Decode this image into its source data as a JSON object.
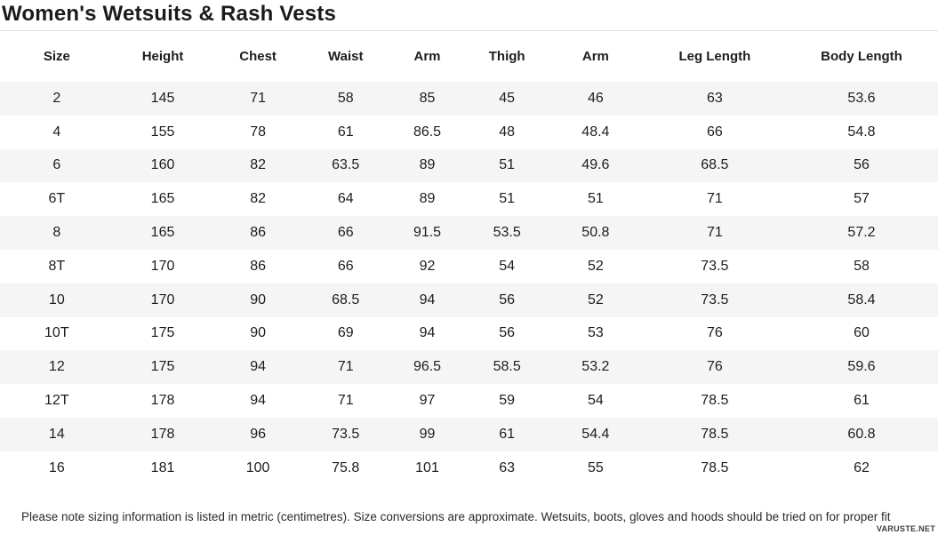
{
  "title": "Women's Wetsuits & Rash Vests",
  "table": {
    "columns": [
      "Size",
      "Height",
      "Chest",
      "Waist",
      "Arm",
      "Thigh",
      "Arm",
      "Leg Length",
      "Body Length"
    ],
    "rows": [
      [
        "2",
        "145",
        "71",
        "58",
        "85",
        "45",
        "46",
        "63",
        "53.6"
      ],
      [
        "4",
        "155",
        "78",
        "61",
        "86.5",
        "48",
        "48.4",
        "66",
        "54.8"
      ],
      [
        "6",
        "160",
        "82",
        "63.5",
        "89",
        "51",
        "49.6",
        "68.5",
        "56"
      ],
      [
        "6T",
        "165",
        "82",
        "64",
        "89",
        "51",
        "51",
        "71",
        "57"
      ],
      [
        "8",
        "165",
        "86",
        "66",
        "91.5",
        "53.5",
        "50.8",
        "71",
        "57.2"
      ],
      [
        "8T",
        "170",
        "86",
        "66",
        "92",
        "54",
        "52",
        "73.5",
        "58"
      ],
      [
        "10",
        "170",
        "90",
        "68.5",
        "94",
        "56",
        "52",
        "73.5",
        "58.4"
      ],
      [
        "10T",
        "175",
        "90",
        "69",
        "94",
        "56",
        "53",
        "76",
        "60"
      ],
      [
        "12",
        "175",
        "94",
        "71",
        "96.5",
        "58.5",
        "53.2",
        "76",
        "59.6"
      ],
      [
        "12T",
        "178",
        "94",
        "71",
        "97",
        "59",
        "54",
        "78.5",
        "61"
      ],
      [
        "14",
        "178",
        "96",
        "73.5",
        "99",
        "61",
        "54.4",
        "78.5",
        "60.8"
      ],
      [
        "16",
        "181",
        "100",
        "75.8",
        "101",
        "63",
        "55",
        "78.5",
        "62"
      ]
    ]
  },
  "footnote": "Please note sizing information is listed in metric (centimetres). Size conversions are approximate. Wetsuits, boots, gloves and hoods should be tried on for proper fit",
  "watermark": "VARUSTE.NET",
  "colors": {
    "stripe": "#f5f5f5",
    "text": "#1d1d1f",
    "divider": "#dddddd"
  }
}
